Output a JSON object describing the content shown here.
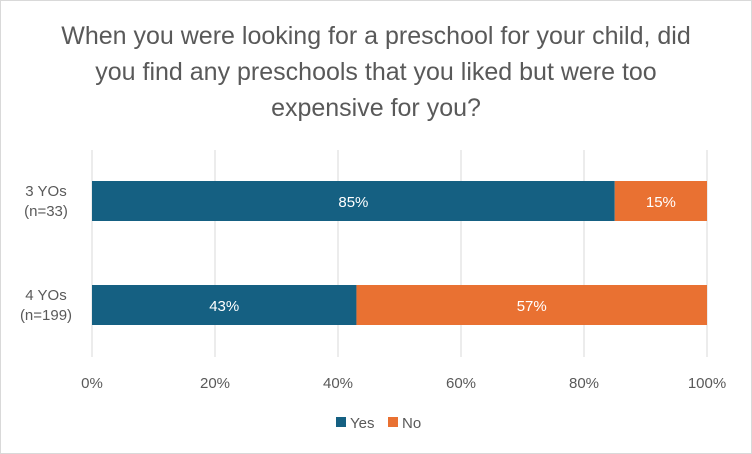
{
  "chart_data": {
    "type": "bar",
    "orientation": "horizontal",
    "stacked": "percent",
    "title": "When you were looking for a preschool for your child, did you find any preschools that you liked but were too expensive for you?",
    "categories": [
      [
        "3 YOs",
        "(n=33)"
      ],
      [
        "4 YOs",
        "(n=199)"
      ]
    ],
    "series": [
      {
        "name": "Yes",
        "color": "#156082",
        "values": [
          85,
          43
        ],
        "labels": [
          "85%",
          "43%"
        ]
      },
      {
        "name": "No",
        "color": "#E97132",
        "values": [
          15,
          57
        ],
        "labels": [
          "15%",
          "57%"
        ]
      }
    ],
    "xlim": [
      0,
      100
    ],
    "x_ticks": [
      0,
      20,
      40,
      60,
      80,
      100
    ],
    "x_tick_labels": [
      "0%",
      "20%",
      "40%",
      "60%",
      "80%",
      "100%"
    ],
    "grid": true,
    "legend_position": "bottom"
  }
}
